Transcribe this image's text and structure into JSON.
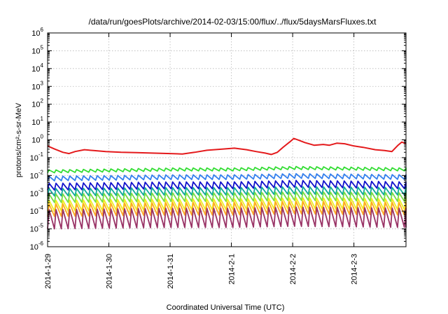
{
  "chart_data": {
    "type": "line",
    "title": "/data/run/goesPlots/archive/2014-02-03/15:00/flux/../flux/5daysMarsFluxes.txt",
    "xlabel": "Coordinated Universal Time (UTC)",
    "ylabel": "protons/cm²-s-sr-MeV",
    "yscale": "log",
    "ylim": [
      1e-06,
      1000000.0
    ],
    "xlim": [
      0,
      5.85
    ],
    "x_ticks": [
      {
        "value": 0,
        "label": "2014-1-29"
      },
      {
        "value": 1,
        "label": "2014-1-30"
      },
      {
        "value": 2,
        "label": "2014-1-31"
      },
      {
        "value": 3,
        "label": "2014-2-1"
      },
      {
        "value": 4,
        "label": "2014-2-2"
      },
      {
        "value": 5,
        "label": "2014-2-3"
      }
    ],
    "y_ticks": [
      {
        "value": 1e-06,
        "base": "10",
        "exp": "-6"
      },
      {
        "value": 1e-05,
        "base": "10",
        "exp": "-5"
      },
      {
        "value": 0.0001,
        "base": "10",
        "exp": "-4"
      },
      {
        "value": 0.001,
        "base": "10",
        "exp": "-3"
      },
      {
        "value": 0.01,
        "base": "10",
        "exp": "-2"
      },
      {
        "value": 0.1,
        "base": "10",
        "exp": "-1"
      },
      {
        "value": 1,
        "base": "10",
        "exp": "0"
      },
      {
        "value": 10,
        "base": "10",
        "exp": "1"
      },
      {
        "value": 100,
        "base": "10",
        "exp": "2"
      },
      {
        "value": 1000,
        "base": "10",
        "exp": "3"
      },
      {
        "value": 10000,
        "base": "10",
        "exp": "4"
      },
      {
        "value": 100000,
        "base": "10",
        "exp": "5"
      },
      {
        "value": 1000000,
        "base": "10",
        "exp": "6"
      }
    ],
    "grid": true,
    "series": [
      {
        "color": "#e41a1c",
        "sawtooth": false,
        "points": [
          [
            0,
            0.45
          ],
          [
            0.12,
            0.3
          ],
          [
            0.25,
            0.2
          ],
          [
            0.35,
            0.17
          ],
          [
            0.45,
            0.22
          ],
          [
            0.6,
            0.28
          ],
          [
            0.75,
            0.25
          ],
          [
            0.95,
            0.22
          ],
          [
            1.2,
            0.2
          ],
          [
            1.45,
            0.19
          ],
          [
            1.7,
            0.18
          ],
          [
            2.0,
            0.17
          ],
          [
            2.2,
            0.16
          ],
          [
            2.4,
            0.2
          ],
          [
            2.6,
            0.26
          ],
          [
            2.85,
            0.3
          ],
          [
            3.05,
            0.34
          ],
          [
            3.25,
            0.28
          ],
          [
            3.4,
            0.22
          ],
          [
            3.55,
            0.18
          ],
          [
            3.65,
            0.15
          ],
          [
            3.75,
            0.2
          ],
          [
            3.85,
            0.4
          ],
          [
            3.95,
            0.75
          ],
          [
            4.02,
            1.2
          ],
          [
            4.1,
            0.95
          ],
          [
            4.2,
            0.7
          ],
          [
            4.35,
            0.5
          ],
          [
            4.5,
            0.55
          ],
          [
            4.6,
            0.5
          ],
          [
            4.72,
            0.65
          ],
          [
            4.85,
            0.6
          ],
          [
            5.0,
            0.45
          ],
          [
            5.15,
            0.38
          ],
          [
            5.35,
            0.28
          ],
          [
            5.5,
            0.25
          ],
          [
            5.62,
            0.22
          ],
          [
            5.72,
            0.5
          ],
          [
            5.78,
            0.75
          ],
          [
            5.85,
            0.6
          ]
        ]
      },
      {
        "color": "#33dd33",
        "sawtooth": true,
        "base": 0.017,
        "amp": 1.45,
        "points": [
          [
            0,
            0.014
          ],
          [
            2.0,
            0.018
          ],
          [
            3.0,
            0.018
          ],
          [
            4.0,
            0.022
          ],
          [
            5.0,
            0.02
          ],
          [
            5.85,
            0.018
          ]
        ]
      },
      {
        "color": "#3380ee",
        "sawtooth": true,
        "base": 0.006,
        "amp": 1.8,
        "points": [
          [
            0,
            0.005
          ],
          [
            2.0,
            0.006
          ],
          [
            3.0,
            0.006
          ],
          [
            4.0,
            0.007
          ],
          [
            5.0,
            0.0065
          ],
          [
            5.85,
            0.006
          ]
        ]
      },
      {
        "color": "#1111cc",
        "sawtooth": true,
        "base": 0.0018,
        "amp": 2.4,
        "points": [
          [
            0,
            0.0015
          ],
          [
            2.0,
            0.0018
          ],
          [
            3.0,
            0.0018
          ],
          [
            4.0,
            0.0022
          ],
          [
            5.0,
            0.002
          ],
          [
            5.85,
            0.0018
          ]
        ]
      },
      {
        "color": "#11aa99",
        "sawtooth": true,
        "base": 0.0008,
        "amp": 2.6,
        "points": [
          [
            0,
            0.0007
          ],
          [
            2.0,
            0.0008
          ],
          [
            3.0,
            0.0008
          ],
          [
            4.0,
            0.0009
          ],
          [
            5.0,
            0.00085
          ],
          [
            5.85,
            0.0008
          ]
        ]
      },
      {
        "color": "#77dd44",
        "sawtooth": true,
        "base": 0.00035,
        "amp": 3.0,
        "points": [
          [
            0,
            0.0003
          ],
          [
            2.0,
            0.00035
          ],
          [
            3.0,
            0.00035
          ],
          [
            4.0,
            0.0004
          ],
          [
            5.0,
            0.00038
          ],
          [
            5.85,
            0.00035
          ]
        ]
      },
      {
        "color": "#eeee22",
        "sawtooth": true,
        "base": 0.00012,
        "amp": 4.0,
        "points": [
          [
            0,
            0.0001
          ],
          [
            2.0,
            0.00012
          ],
          [
            3.0,
            0.00012
          ],
          [
            4.0,
            0.00014
          ],
          [
            5.0,
            0.00013
          ],
          [
            5.85,
            0.00012
          ]
        ]
      },
      {
        "color": "#ffaa22",
        "sawtooth": true,
        "base": 6e-05,
        "amp": 5.0,
        "points": [
          [
            0,
            5e-05
          ],
          [
            2.0,
            6e-05
          ],
          [
            3.0,
            6e-05
          ],
          [
            4.0,
            7e-05
          ],
          [
            5.0,
            6.5e-05
          ],
          [
            5.85,
            6e-05
          ]
        ]
      },
      {
        "color": "#993366",
        "sawtooth": true,
        "base": 1.2e-05,
        "amp": 12.0,
        "points": [
          [
            0,
            1e-05
          ],
          [
            2.0,
            1.2e-05
          ],
          [
            3.0,
            1.2e-05
          ],
          [
            4.0,
            1.4e-05
          ],
          [
            5.0,
            1.3e-05
          ],
          [
            5.85,
            1.2e-05
          ]
        ]
      }
    ]
  }
}
